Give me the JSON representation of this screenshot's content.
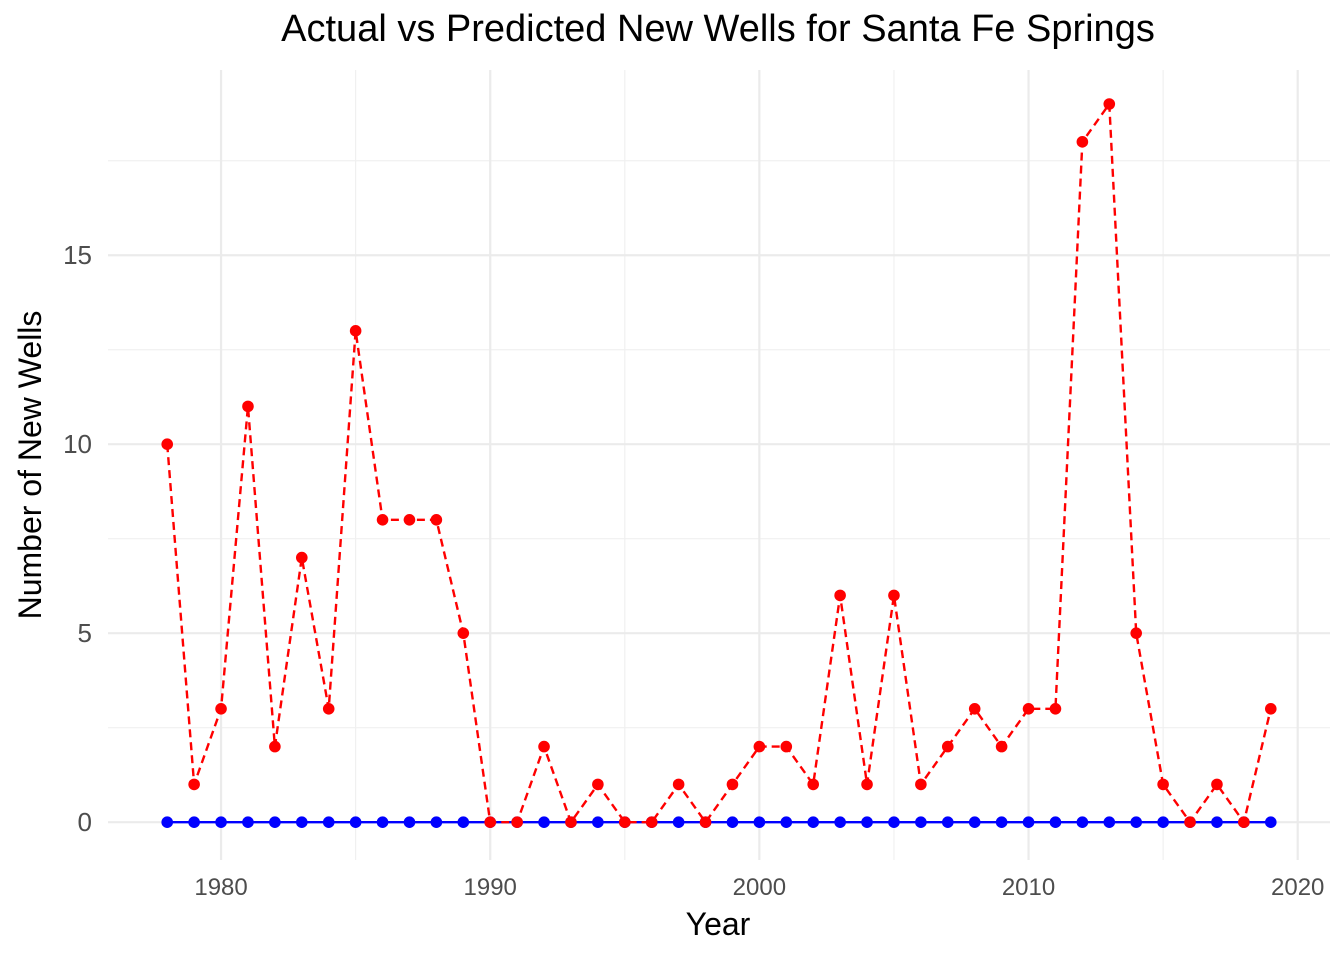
{
  "chart_data": {
    "type": "line",
    "title": "Actual vs Predicted New Wells for Santa Fe Springs",
    "xlabel": "Year",
    "ylabel": "Number of New Wells",
    "xlim": [
      1975.8,
      2021.2
    ],
    "ylim": [
      -1.0,
      19.9
    ],
    "x_ticks": [
      1980,
      1990,
      2000,
      2010,
      2020
    ],
    "y_ticks": [
      0,
      5,
      10,
      15
    ],
    "grid": true,
    "legend": "none",
    "x": [
      1978,
      1979,
      1980,
      1981,
      1982,
      1983,
      1984,
      1985,
      1986,
      1987,
      1988,
      1989,
      1990,
      1991,
      1992,
      1993,
      1994,
      1995,
      1996,
      1997,
      1998,
      1999,
      2000,
      2001,
      2002,
      2003,
      2004,
      2005,
      2006,
      2007,
      2008,
      2009,
      2010,
      2011,
      2012,
      2013,
      2014,
      2015,
      2016,
      2017,
      2018,
      2019
    ],
    "series": [
      {
        "color": "#ff0000",
        "line_style": "dashed",
        "values": [
          10,
          1,
          3,
          11,
          2,
          7,
          3,
          13,
          8,
          8,
          8,
          5,
          0,
          0,
          2,
          0,
          1,
          0,
          0,
          1,
          0,
          1,
          2,
          2,
          1,
          6,
          1,
          6,
          1,
          2,
          3,
          2,
          3,
          3,
          18,
          19,
          5,
          1,
          0,
          1,
          0,
          3
        ]
      },
      {
        "color": "#0000ff",
        "line_style": "solid",
        "values": [
          0,
          0,
          0,
          0,
          0,
          0,
          0,
          0,
          0,
          0,
          0,
          0,
          0,
          0,
          0,
          0,
          0,
          0,
          0,
          0,
          0,
          0,
          0,
          0,
          0,
          0,
          0,
          0,
          0,
          0,
          0,
          0,
          0,
          0,
          0,
          0,
          0,
          0,
          0,
          0,
          0,
          0
        ]
      }
    ]
  }
}
